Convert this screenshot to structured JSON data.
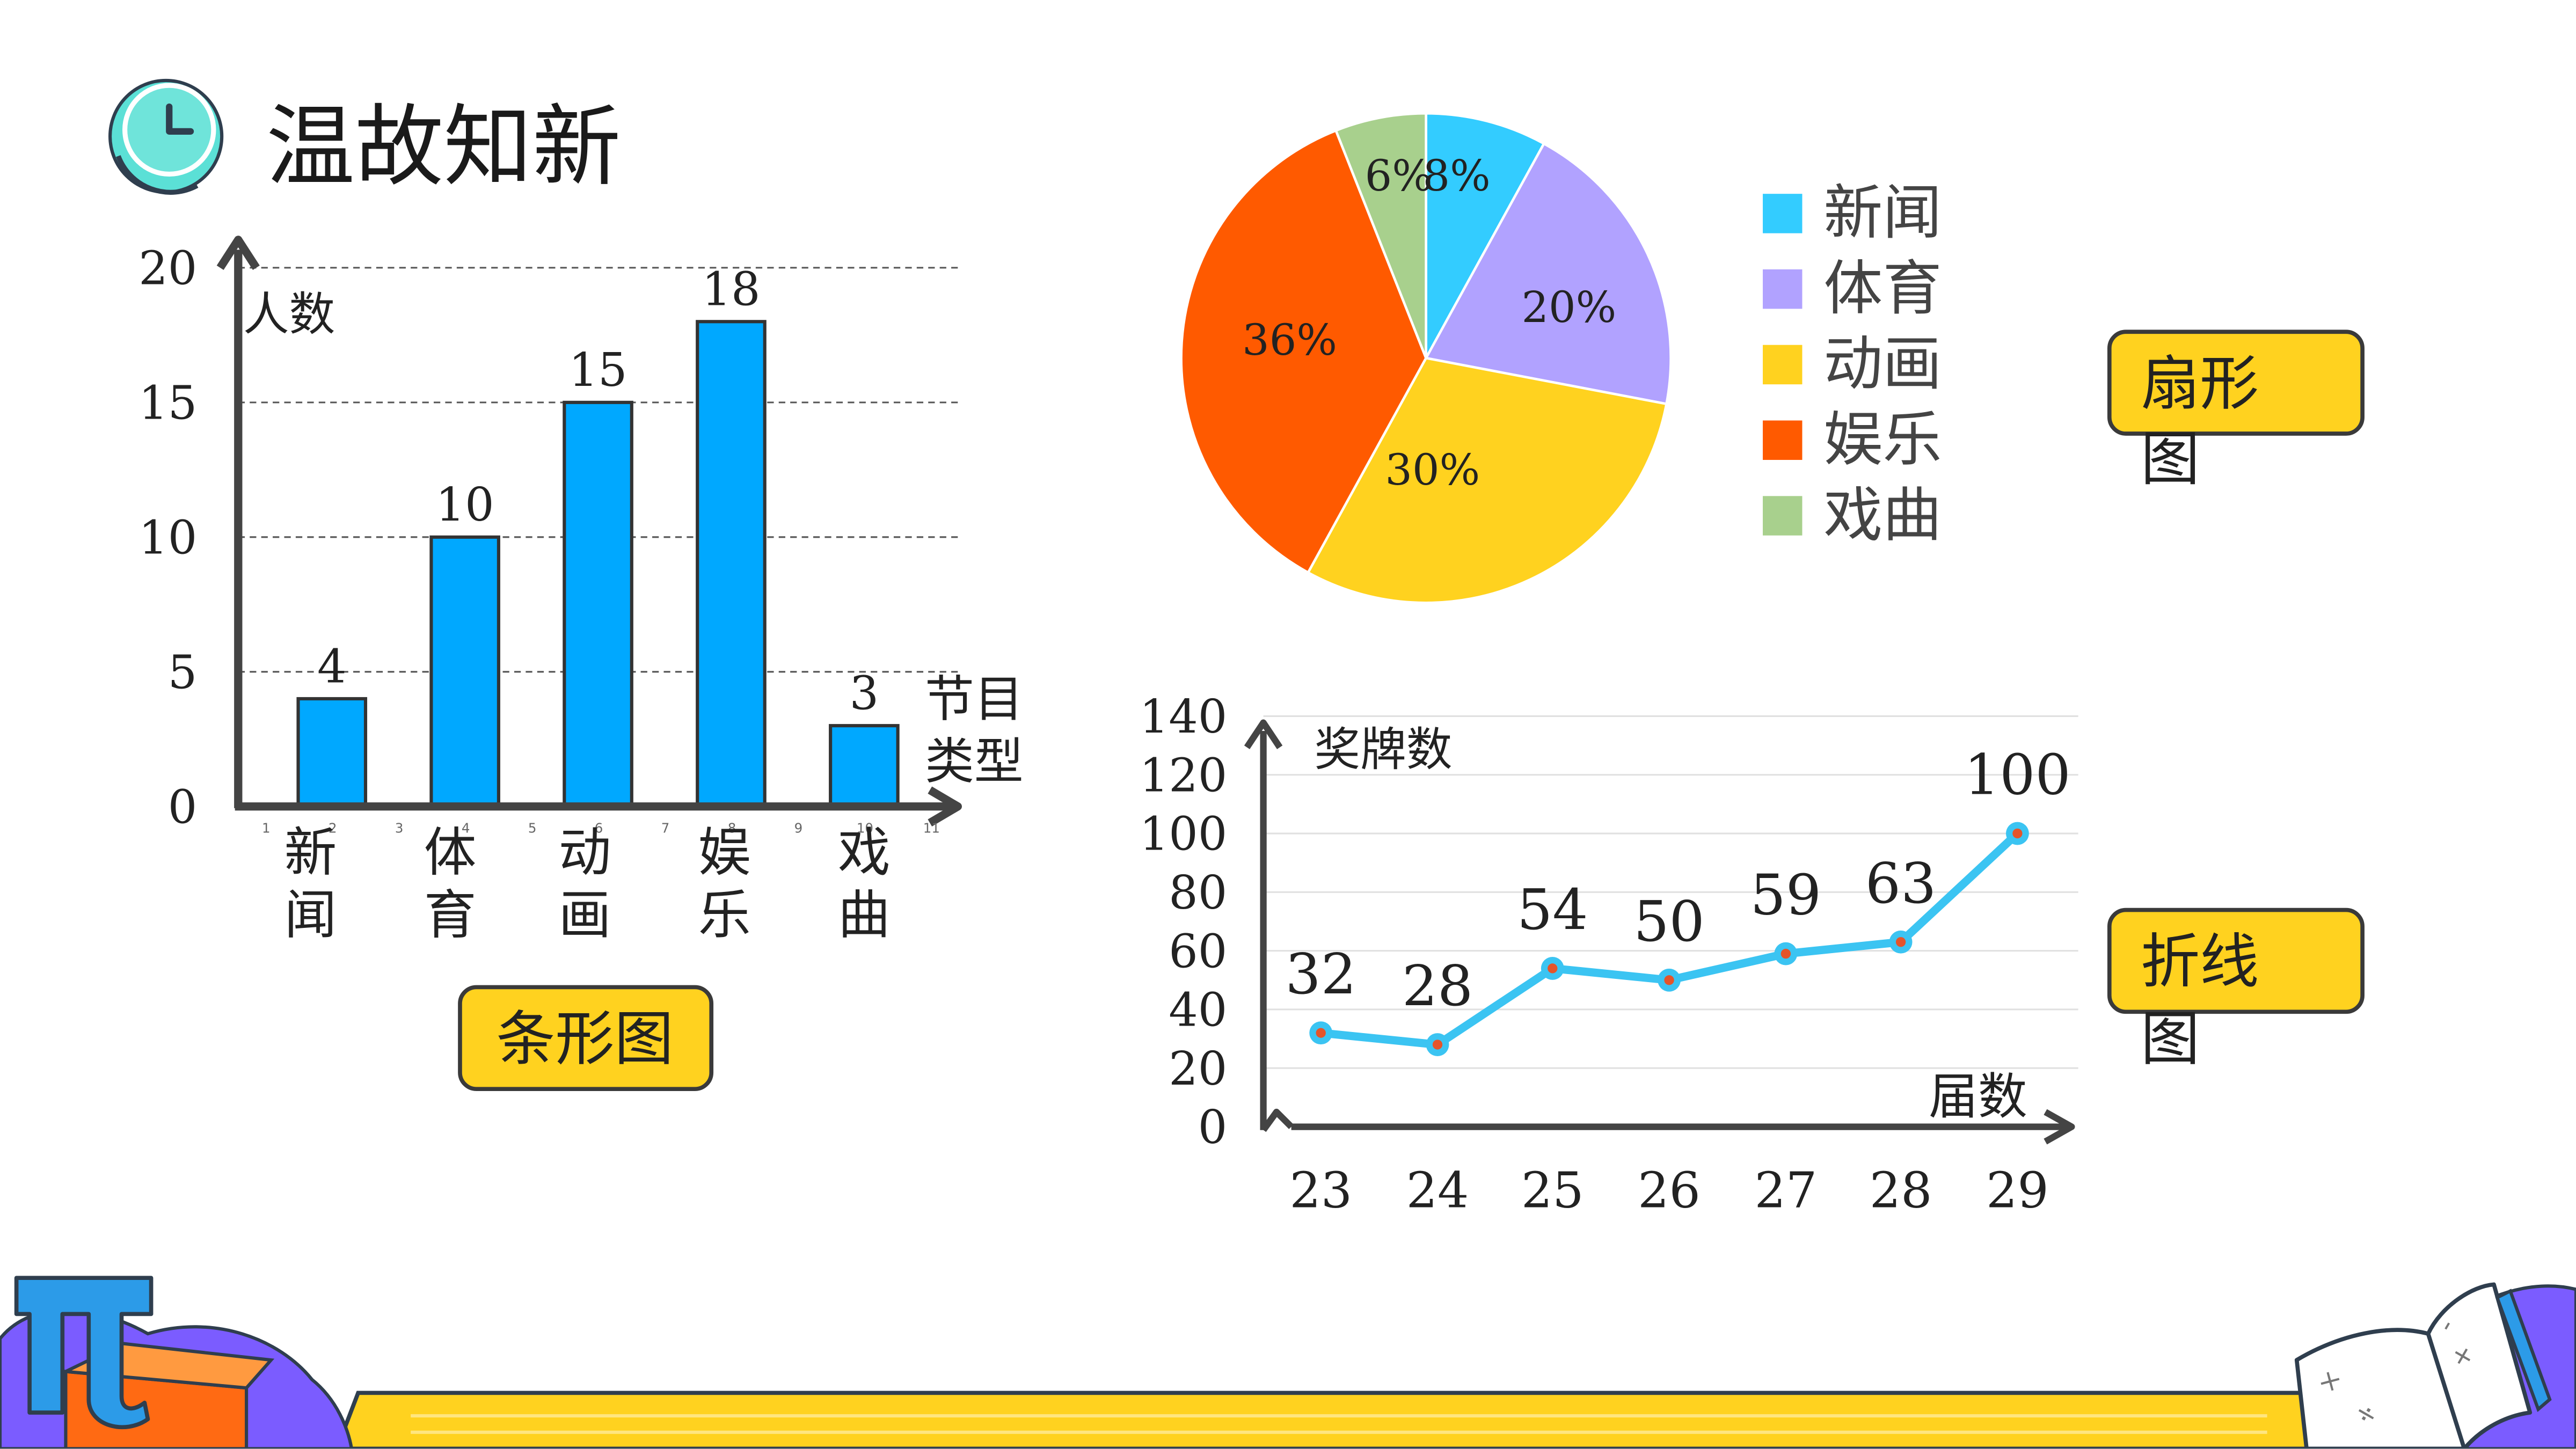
{
  "page": {
    "title": "温故知新"
  },
  "buttons": {
    "bar_chart": "条形图",
    "pie_chart": "扇形图",
    "line_chart": "折线图"
  },
  "chart_data": [
    {
      "type": "bar",
      "categories": [
        "新闻",
        "体育",
        "动画",
        "娱乐",
        "戏曲"
      ],
      "values": [
        4,
        10,
        15,
        18,
        3
      ],
      "ylabel": "人数",
      "xlabel": "节目类型",
      "ylim": [
        0,
        20
      ],
      "yticks": [
        0,
        5,
        10,
        15,
        20
      ],
      "minor_ticks": [
        "1",
        "2",
        "3",
        "4",
        "5",
        "6",
        "7",
        "8",
        "9",
        "10",
        "11"
      ],
      "grid": true,
      "color": "#00A8FF"
    },
    {
      "type": "pie",
      "categories": [
        "新闻",
        "体育",
        "动画",
        "娱乐",
        "戏曲"
      ],
      "values": [
        8,
        20,
        30,
        36,
        6
      ],
      "labels": [
        "8%",
        "20%",
        "30%",
        "36%",
        "6%"
      ],
      "colors": [
        "#33CCFF",
        "#B1A2FF",
        "#FFD21F",
        "#FF5A00",
        "#A8D08D"
      ],
      "legend": "right"
    },
    {
      "type": "line",
      "x": [
        "23",
        "24",
        "25",
        "26",
        "27",
        "28",
        "29"
      ],
      "values": [
        32,
        28,
        54,
        50,
        59,
        63,
        100
      ],
      "ylabel": "奖牌数",
      "xlabel": "届数",
      "ylim": [
        0,
        140
      ],
      "yticks": [
        0,
        20,
        40,
        60,
        80,
        100,
        120,
        140
      ],
      "grid": true,
      "color": "#3BC4F2",
      "marker_color": "#E5542A"
    }
  ]
}
